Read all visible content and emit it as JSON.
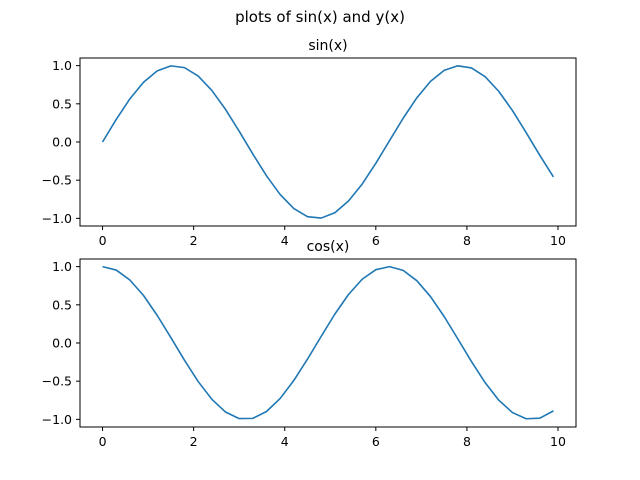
{
  "figure": {
    "suptitle": "plots of sin(x) and y(x)"
  },
  "chart_data": [
    {
      "type": "line",
      "title": "sin(x)",
      "xlabel": "",
      "ylabel": "",
      "xlim": [
        -0.495,
        10.395
      ],
      "ylim": [
        -1.1,
        1.1
      ],
      "xticks": [
        0,
        2,
        4,
        6,
        8,
        10
      ],
      "xtick_labels": [
        "0",
        "2",
        "4",
        "6",
        "8",
        "10"
      ],
      "yticks": [
        -1.0,
        -0.5,
        0.0,
        0.5,
        1.0
      ],
      "ytick_labels": [
        "−1.0",
        "−0.5",
        "0.0",
        "0.5",
        "1.0"
      ],
      "grid": false,
      "color": "#1f77b4",
      "x": [
        0,
        0.3,
        0.6,
        0.9,
        1.2,
        1.5,
        1.8,
        2.1,
        2.4,
        2.7,
        3.0,
        3.3,
        3.6,
        3.9,
        4.2,
        4.5,
        4.8,
        5.1,
        5.4,
        5.7,
        6.0,
        6.3,
        6.6,
        6.9,
        7.2,
        7.5,
        7.8,
        8.1,
        8.4,
        8.7,
        9.0,
        9.3,
        9.6,
        9.9
      ],
      "y": [
        0.0,
        0.296,
        0.565,
        0.783,
        0.932,
        0.997,
        0.974,
        0.863,
        0.675,
        0.427,
        0.141,
        -0.158,
        -0.443,
        -0.688,
        -0.872,
        -0.978,
        -0.996,
        -0.926,
        -0.773,
        -0.551,
        -0.279,
        0.017,
        0.311,
        0.578,
        0.794,
        0.938,
        0.998,
        0.97,
        0.855,
        0.663,
        0.412,
        0.124,
        -0.174,
        -0.458
      ]
    },
    {
      "type": "line",
      "title": "cos(x)",
      "xlabel": "",
      "ylabel": "",
      "xlim": [
        -0.495,
        10.395
      ],
      "ylim": [
        -1.1,
        1.1
      ],
      "xticks": [
        0,
        2,
        4,
        6,
        8,
        10
      ],
      "xtick_labels": [
        "0",
        "2",
        "4",
        "6",
        "8",
        "10"
      ],
      "yticks": [
        -1.0,
        -0.5,
        0.0,
        0.5,
        1.0
      ],
      "ytick_labels": [
        "−1.0",
        "−0.5",
        "0.0",
        "0.5",
        "1.0"
      ],
      "grid": false,
      "color": "#1f77b4",
      "x": [
        0,
        0.3,
        0.6,
        0.9,
        1.2,
        1.5,
        1.8,
        2.1,
        2.4,
        2.7,
        3.0,
        3.3,
        3.6,
        3.9,
        4.2,
        4.5,
        4.8,
        5.1,
        5.4,
        5.7,
        6.0,
        6.3,
        6.6,
        6.9,
        7.2,
        7.5,
        7.8,
        8.1,
        8.4,
        8.7,
        9.0,
        9.3,
        9.6,
        9.9
      ],
      "y": [
        1.0,
        0.955,
        0.825,
        0.622,
        0.362,
        0.071,
        -0.227,
        -0.505,
        -0.737,
        -0.904,
        -0.99,
        -0.987,
        -0.897,
        -0.726,
        -0.49,
        -0.211,
        0.087,
        0.378,
        0.635,
        0.835,
        0.96,
        1.0,
        0.951,
        0.816,
        0.608,
        0.347,
        0.054,
        -0.243,
        -0.519,
        -0.749,
        -0.911,
        -0.992,
        -0.985,
        -0.889
      ]
    }
  ]
}
